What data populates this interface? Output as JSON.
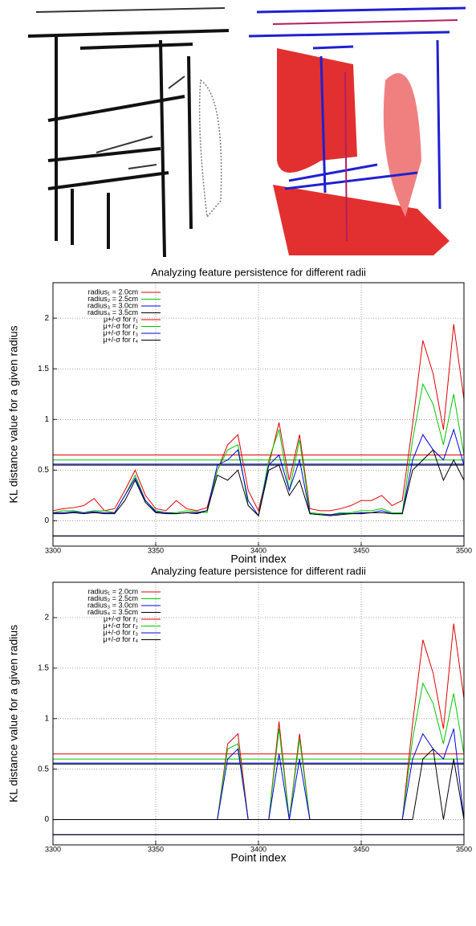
{
  "chart_data": [
    {
      "type": "line",
      "title": "Analyzing feature persistence for different radii",
      "x_label": "Point index",
      "y_label": "KL distance value for a given radius",
      "x": [
        3300,
        3305,
        3310,
        3315,
        3320,
        3325,
        3330,
        3335,
        3340,
        3345,
        3350,
        3355,
        3360,
        3365,
        3370,
        3375,
        3380,
        3385,
        3390,
        3395,
        3400,
        3405,
        3410,
        3415,
        3420,
        3425,
        3430,
        3435,
        3440,
        3445,
        3450,
        3455,
        3460,
        3465,
        3470,
        3475,
        3480,
        3485,
        3490,
        3495,
        3500
      ],
      "series": [
        {
          "name": "radius₁ = 2.0cm",
          "color": "#e00000",
          "values": [
            0.1,
            0.12,
            0.13,
            0.15,
            0.22,
            0.1,
            0.12,
            0.3,
            0.5,
            0.25,
            0.12,
            0.1,
            0.2,
            0.12,
            0.1,
            0.13,
            0.5,
            0.75,
            0.85,
            0.3,
            0.1,
            0.55,
            0.97,
            0.4,
            0.85,
            0.12,
            0.1,
            0.1,
            0.12,
            0.15,
            0.2,
            0.2,
            0.25,
            0.15,
            0.2,
            0.95,
            1.78,
            1.45,
            0.9,
            1.94,
            1.2
          ]
        },
        {
          "name": "radius₂ = 2.5cm",
          "color": "#00c800",
          "values": [
            0.08,
            0.1,
            0.1,
            0.08,
            0.1,
            0.1,
            0.08,
            0.25,
            0.45,
            0.2,
            0.1,
            0.08,
            0.08,
            0.1,
            0.09,
            0.08,
            0.5,
            0.7,
            0.75,
            0.15,
            0.05,
            0.6,
            0.9,
            0.3,
            0.8,
            0.08,
            0.07,
            0.06,
            0.08,
            0.08,
            0.1,
            0.1,
            0.12,
            0.08,
            0.08,
            0.8,
            1.35,
            1.15,
            0.75,
            1.25,
            0.65
          ]
        },
        {
          "name": "radius₃ = 3.0cm",
          "color": "#0000e0",
          "values": [
            0.08,
            0.08,
            0.09,
            0.08,
            0.09,
            0.08,
            0.08,
            0.25,
            0.42,
            0.2,
            0.09,
            0.08,
            0.07,
            0.08,
            0.08,
            0.1,
            0.55,
            0.6,
            0.7,
            0.2,
            0.05,
            0.55,
            0.65,
            0.3,
            0.6,
            0.07,
            0.06,
            0.06,
            0.07,
            0.07,
            0.08,
            0.08,
            0.1,
            0.07,
            0.07,
            0.6,
            0.85,
            0.7,
            0.6,
            0.9,
            0.55
          ]
        },
        {
          "name": "radius₄ = 3.5cm",
          "color": "#000000",
          "values": [
            0.07,
            0.07,
            0.08,
            0.07,
            0.08,
            0.07,
            0.07,
            0.2,
            0.4,
            0.18,
            0.08,
            0.07,
            0.07,
            0.08,
            0.07,
            0.1,
            0.45,
            0.4,
            0.5,
            0.15,
            0.05,
            0.5,
            0.55,
            0.25,
            0.4,
            0.07,
            0.06,
            0.05,
            0.06,
            0.07,
            0.07,
            0.08,
            0.08,
            0.07,
            0.07,
            0.5,
            0.6,
            0.7,
            0.4,
            0.6,
            0.4
          ]
        }
      ],
      "thresholds": [
        {
          "name": "μ+/-σ for r₁",
          "color": "#e00000",
          "values": [
            0.65,
            -0.15
          ]
        },
        {
          "name": "μ+/-σ for r₂",
          "color": "#00c800",
          "values": [
            0.6,
            -0.15
          ]
        },
        {
          "name": "μ+/-σ for r₃",
          "color": "#0000e0",
          "values": [
            0.56,
            -0.15
          ]
        },
        {
          "name": "μ+/-σ for r₄",
          "color": "#000000",
          "values": [
            0.55,
            -0.15
          ]
        }
      ],
      "xlim": [
        3300,
        3500
      ],
      "xticks": [
        3300,
        3350,
        3400,
        3450,
        3500
      ],
      "ylim": [
        -0.25,
        2.35
      ],
      "yticks": [
        0,
        0.5,
        1,
        1.5,
        2
      ],
      "grid": true,
      "legend": "upper-left"
    },
    {
      "type": "line",
      "title": "Analyzing feature persistence for different radii",
      "x_label": "Point index",
      "y_label": "KL distance value for a given radius",
      "x": [
        3300,
        3305,
        3310,
        3315,
        3320,
        3325,
        3330,
        3335,
        3340,
        3345,
        3350,
        3355,
        3360,
        3365,
        3370,
        3375,
        3380,
        3385,
        3390,
        3395,
        3400,
        3405,
        3410,
        3415,
        3420,
        3425,
        3430,
        3435,
        3440,
        3445,
        3450,
        3455,
        3460,
        3465,
        3470,
        3475,
        3480,
        3485,
        3490,
        3495,
        3500
      ],
      "series": [
        {
          "name": "radius₁ = 2.0cm",
          "color": "#e00000",
          "values": [
            0,
            0,
            0,
            0,
            0,
            0,
            0,
            0,
            0,
            0,
            0,
            0,
            0,
            0,
            0,
            0,
            0,
            0.75,
            0.85,
            0,
            0,
            0,
            0.97,
            0,
            0.85,
            0,
            0,
            0,
            0,
            0,
            0,
            0,
            0,
            0,
            0,
            0.95,
            1.78,
            1.45,
            0.9,
            1.94,
            1.2
          ]
        },
        {
          "name": "radius₂ = 2.5cm",
          "color": "#00c800",
          "values": [
            0,
            0,
            0,
            0,
            0,
            0,
            0,
            0,
            0,
            0,
            0,
            0,
            0,
            0,
            0,
            0,
            0,
            0.7,
            0.75,
            0,
            0,
            0,
            0.9,
            0,
            0.8,
            0,
            0,
            0,
            0,
            0,
            0,
            0,
            0,
            0,
            0,
            0.8,
            1.35,
            1.15,
            0.75,
            1.25,
            0.65
          ]
        },
        {
          "name": "radius₃ = 3.0cm",
          "color": "#0000e0",
          "values": [
            0,
            0,
            0,
            0,
            0,
            0,
            0,
            0,
            0,
            0,
            0,
            0,
            0,
            0,
            0,
            0,
            0,
            0.6,
            0.7,
            0,
            0,
            0,
            0.65,
            0,
            0.6,
            0,
            0,
            0,
            0,
            0,
            0,
            0,
            0,
            0,
            0,
            0.6,
            0.85,
            0.7,
            0.6,
            0.9,
            0
          ]
        },
        {
          "name": "radius₄ = 3.5cm",
          "color": "#000000",
          "values": [
            0,
            0,
            0,
            0,
            0,
            0,
            0,
            0,
            0,
            0,
            0,
            0,
            0,
            0,
            0,
            0,
            0,
            0,
            0,
            0,
            0,
            0,
            0,
            0,
            0,
            0,
            0,
            0,
            0,
            0,
            0,
            0,
            0,
            0,
            0,
            0,
            0.6,
            0.7,
            0,
            0.6,
            0
          ]
        }
      ],
      "thresholds": [
        {
          "name": "μ+/-σ for r₁",
          "color": "#e00000",
          "values": [
            0.65,
            -0.15
          ]
        },
        {
          "name": "μ+/-σ for r₂",
          "color": "#00c800",
          "values": [
            0.6,
            -0.15
          ]
        },
        {
          "name": "μ+/-σ for r₃",
          "color": "#0000e0",
          "values": [
            0.56,
            -0.15
          ]
        },
        {
          "name": "μ+/-σ for r₄",
          "color": "#000000",
          "values": [
            0.55,
            -0.15
          ]
        }
      ],
      "xlim": [
        3300,
        3500
      ],
      "xticks": [
        3300,
        3350,
        3400,
        3450,
        3500
      ],
      "ylim": [
        -0.25,
        2.35
      ],
      "yticks": [
        0,
        0.5,
        1,
        1.5,
        2
      ],
      "grid": true,
      "legend": "upper-left"
    }
  ]
}
